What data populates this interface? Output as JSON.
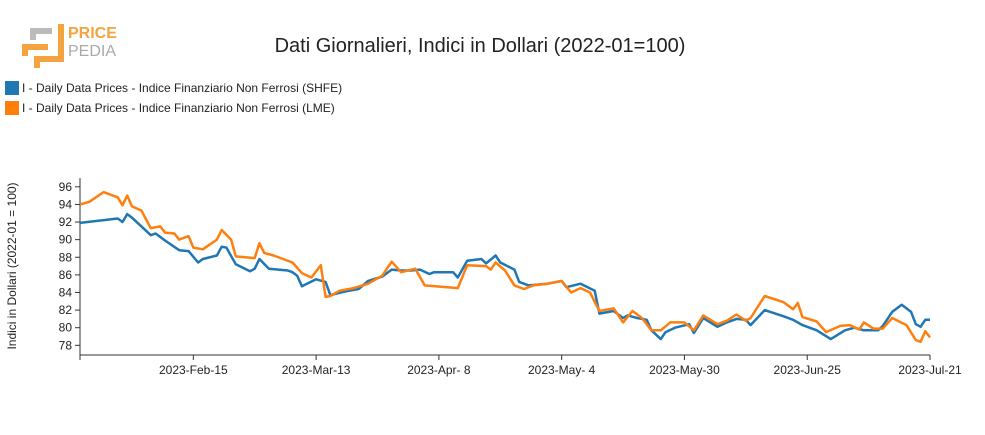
{
  "logo": {
    "line1": "PRICE",
    "line2": "PEDIA"
  },
  "chart_data": {
    "type": "line",
    "title": "Dati Giornalieri, Indici in Dollari (2022-01=100)",
    "ylabel": "Indici in Dollari (2022-01 = 100)",
    "legend": "top-left",
    "xlim": [
      "2023-01-22",
      "2023-07-21"
    ],
    "ylim": [
      76.9,
      97
    ],
    "yticks": [
      78,
      80,
      82,
      84,
      86,
      88,
      90,
      92,
      94,
      96
    ],
    "xticks": [
      {
        "value": "2023-02-15",
        "label": "2023-Feb-15"
      },
      {
        "value": "2023-03-13",
        "label": "2023-Mar-13"
      },
      {
        "value": "2023-04-08",
        "label": "2023-Apr- 8"
      },
      {
        "value": "2023-05-04",
        "label": "2023-May- 4"
      },
      {
        "value": "2023-05-30",
        "label": "2023-May-30"
      },
      {
        "value": "2023-06-25",
        "label": "2023-Jun-25"
      },
      {
        "value": "2023-07-21",
        "label": "2023-Jul-21"
      }
    ],
    "series": [
      {
        "name": "I - Daily Data Prices - Indice Finanziario Non Ferrosi (SHFE)",
        "color": "#1f77b4",
        "x": [
          "2023-01-22",
          "2023-01-30",
          "2023-01-31",
          "2023-02-01",
          "2023-02-02",
          "2023-02-04",
          "2023-02-06",
          "2023-02-07",
          "2023-02-09",
          "2023-02-12",
          "2023-02-14",
          "2023-02-16",
          "2023-02-17",
          "2023-02-20",
          "2023-02-21",
          "2023-02-22",
          "2023-02-24",
          "2023-02-27",
          "2023-02-28",
          "2023-03-01",
          "2023-03-03",
          "2023-03-07",
          "2023-03-08",
          "2023-03-09",
          "2023-03-10",
          "2023-03-13",
          "2023-03-15",
          "2023-03-16",
          "2023-03-19",
          "2023-03-22",
          "2023-03-24",
          "2023-03-27",
          "2023-03-29",
          "2023-03-31",
          "2023-04-02",
          "2023-04-04",
          "2023-04-06",
          "2023-04-07",
          "2023-04-08",
          "2023-04-11",
          "2023-04-12",
          "2023-04-14",
          "2023-04-17",
          "2023-04-18",
          "2023-04-20",
          "2023-04-21",
          "2023-04-24",
          "2023-04-25",
          "2023-04-27",
          "2023-05-01",
          "2023-05-04",
          "2023-05-05",
          "2023-05-08",
          "2023-05-11",
          "2023-05-12",
          "2023-05-15",
          "2023-05-17",
          "2023-05-18",
          "2023-05-20",
          "2023-05-22",
          "2023-05-23",
          "2023-05-25",
          "2023-05-26",
          "2023-05-28",
          "2023-05-31",
          "2023-06-01",
          "2023-06-03",
          "2023-06-06",
          "2023-06-08",
          "2023-06-10",
          "2023-06-12",
          "2023-06-13",
          "2023-06-16",
          "2023-06-20",
          "2023-06-22",
          "2023-06-24",
          "2023-06-27",
          "2023-06-30",
          "2023-07-03",
          "2023-07-05",
          "2023-07-07",
          "2023-07-10",
          "2023-07-11",
          "2023-07-13",
          "2023-07-15",
          "2023-07-17",
          "2023-07-18",
          "2023-07-19",
          "2023-07-20",
          "2023-07-21"
        ],
        "values": [
          91.9,
          92.4,
          92.0,
          92.9,
          92.5,
          91.5,
          90.5,
          90.7,
          89.9,
          88.8,
          88.7,
          87.4,
          87.8,
          88.2,
          89.2,
          89.1,
          87.2,
          86.4,
          86.7,
          87.8,
          86.7,
          86.5,
          86.3,
          85.9,
          84.7,
          85.5,
          85.2,
          83.7,
          84.1,
          84.4,
          85.3,
          85.8,
          86.6,
          86.5,
          86.5,
          86.6,
          86.1,
          86.3,
          86.3,
          86.3,
          85.7,
          87.6,
          87.8,
          87.3,
          88.2,
          87.4,
          86.6,
          85.2,
          84.8,
          85.0,
          85.3,
          84.6,
          85.0,
          84.2,
          81.6,
          81.9,
          81.1,
          81.4,
          81.1,
          80.9,
          79.7,
          78.7,
          79.5,
          80.0,
          80.4,
          79.4,
          81.1,
          80.1,
          80.6,
          81.0,
          80.9,
          80.3,
          82.0,
          81.3,
          80.9,
          80.3,
          79.7,
          78.7,
          79.7,
          80.0,
          79.7,
          79.7,
          80.2,
          81.8,
          82.6,
          81.8,
          80.4,
          80.1,
          80.9,
          80.9
        ]
      },
      {
        "name": "I - Daily Data Prices - Indice Finanziario Non Ferrosi (LME)",
        "color": "#ff7f0e",
        "x": [
          "2023-01-22",
          "2023-01-24",
          "2023-01-27",
          "2023-01-30",
          "2023-01-31",
          "2023-02-01",
          "2023-02-02",
          "2023-02-04",
          "2023-02-06",
          "2023-02-08",
          "2023-02-09",
          "2023-02-11",
          "2023-02-12",
          "2023-02-14",
          "2023-02-15",
          "2023-02-17",
          "2023-02-20",
          "2023-02-21",
          "2023-02-23",
          "2023-02-24",
          "2023-02-28",
          "2023-03-01",
          "2023-03-02",
          "2023-03-04",
          "2023-03-08",
          "2023-03-10",
          "2023-03-12",
          "2023-03-14",
          "2023-03-15",
          "2023-03-16",
          "2023-03-18",
          "2023-03-21",
          "2023-03-24",
          "2023-03-27",
          "2023-03-29",
          "2023-03-31",
          "2023-04-03",
          "2023-04-05",
          "2023-04-12",
          "2023-04-14",
          "2023-04-18",
          "2023-04-19",
          "2023-04-20",
          "2023-04-22",
          "2023-04-24",
          "2023-04-26",
          "2023-04-28",
          "2023-05-01",
          "2023-05-04",
          "2023-05-06",
          "2023-05-08",
          "2023-05-10",
          "2023-05-12",
          "2023-05-15",
          "2023-05-17",
          "2023-05-19",
          "2023-05-21",
          "2023-05-23",
          "2023-05-25",
          "2023-05-27",
          "2023-05-30",
          "2023-06-01",
          "2023-06-03",
          "2023-06-06",
          "2023-06-08",
          "2023-06-10",
          "2023-06-12",
          "2023-06-13",
          "2023-06-16",
          "2023-06-20",
          "2023-06-22",
          "2023-06-23",
          "2023-06-24",
          "2023-06-27",
          "2023-06-29",
          "2023-07-02",
          "2023-07-04",
          "2023-07-06",
          "2023-07-07",
          "2023-07-09",
          "2023-07-11",
          "2023-07-13",
          "2023-07-16",
          "2023-07-18",
          "2023-07-19",
          "2023-07-20",
          "2023-07-21"
        ],
        "values": [
          94.0,
          94.3,
          95.4,
          94.8,
          93.9,
          95.0,
          93.8,
          93.3,
          91.3,
          91.5,
          90.8,
          90.7,
          90.0,
          90.4,
          89.1,
          88.9,
          90.0,
          91.1,
          90.0,
          88.1,
          87.9,
          89.6,
          88.5,
          88.2,
          87.4,
          86.2,
          85.7,
          87.1,
          83.5,
          83.6,
          84.2,
          84.5,
          85.0,
          85.9,
          87.5,
          86.3,
          86.7,
          84.8,
          84.5,
          87.1,
          87.0,
          86.6,
          87.4,
          86.5,
          84.8,
          84.4,
          84.8,
          85.0,
          85.3,
          84.0,
          84.5,
          84.0,
          81.9,
          82.2,
          80.6,
          81.9,
          81.1,
          79.7,
          79.7,
          80.6,
          80.6,
          79.7,
          81.4,
          80.4,
          80.8,
          81.5,
          80.8,
          81.1,
          83.6,
          82.9,
          82.1,
          82.8,
          81.2,
          80.7,
          79.5,
          80.2,
          80.3,
          79.8,
          80.6,
          79.9,
          79.9,
          81.1,
          80.3,
          78.6,
          78.4,
          79.6,
          78.9
        ]
      }
    ]
  }
}
